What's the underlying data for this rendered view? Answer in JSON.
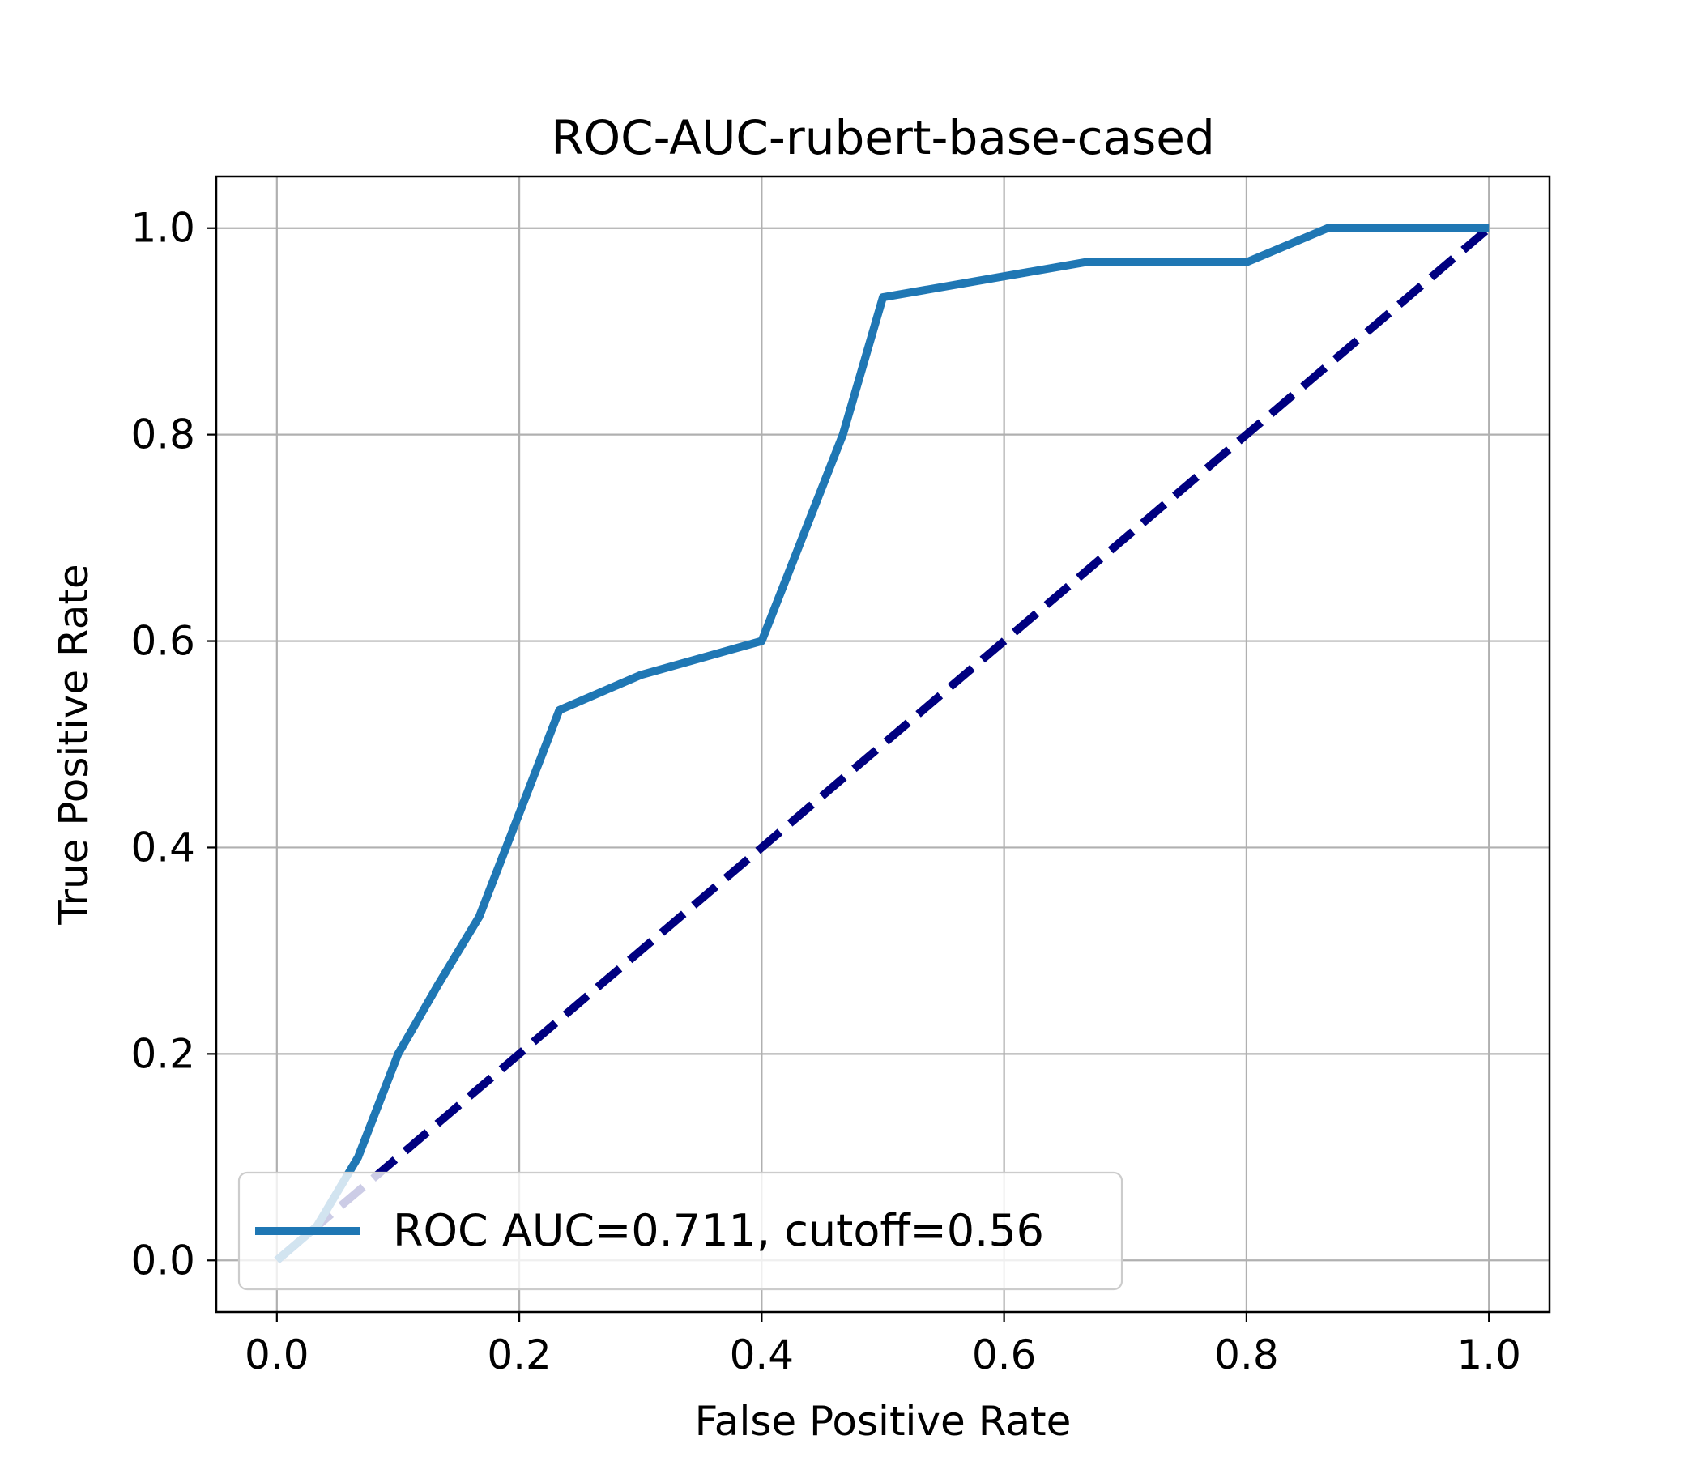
{
  "chart_data": {
    "type": "line",
    "title": "ROC-AUC-rubert-base-cased",
    "xlabel": "False Positive Rate",
    "ylabel": "True Positive Rate",
    "xlim": [
      -0.05,
      1.05
    ],
    "ylim": [
      -0.05,
      1.05
    ],
    "xticks": [
      0.0,
      0.2,
      0.4,
      0.6,
      0.8,
      1.0
    ],
    "yticks": [
      0.0,
      0.2,
      0.4,
      0.6,
      0.8,
      1.0
    ],
    "xtick_labels": [
      "0.0",
      "0.2",
      "0.4",
      "0.6",
      "0.8",
      "1.0"
    ],
    "ytick_labels": [
      "0.0",
      "0.2",
      "0.4",
      "0.6",
      "0.8",
      "1.0"
    ],
    "grid": true,
    "legend_position": "lower left",
    "series": [
      {
        "name": "ROC AUC=0.711, cutoff=0.56",
        "style": "solid",
        "color": "#1f77b4",
        "x": [
          0.0,
          0.033,
          0.067,
          0.1,
          0.133,
          0.167,
          0.2,
          0.233,
          0.3,
          0.4,
          0.467,
          0.5,
          0.667,
          0.8,
          0.867,
          1.0
        ],
        "y": [
          0.0,
          0.033,
          0.1,
          0.2,
          0.267,
          0.333,
          0.433,
          0.533,
          0.567,
          0.6,
          0.8,
          0.933,
          0.967,
          0.967,
          1.0,
          1.0
        ]
      },
      {
        "style": "dashed",
        "color": "#000080",
        "x": [
          0.0,
          1.0
        ],
        "y": [
          0.0,
          1.0
        ]
      }
    ]
  }
}
